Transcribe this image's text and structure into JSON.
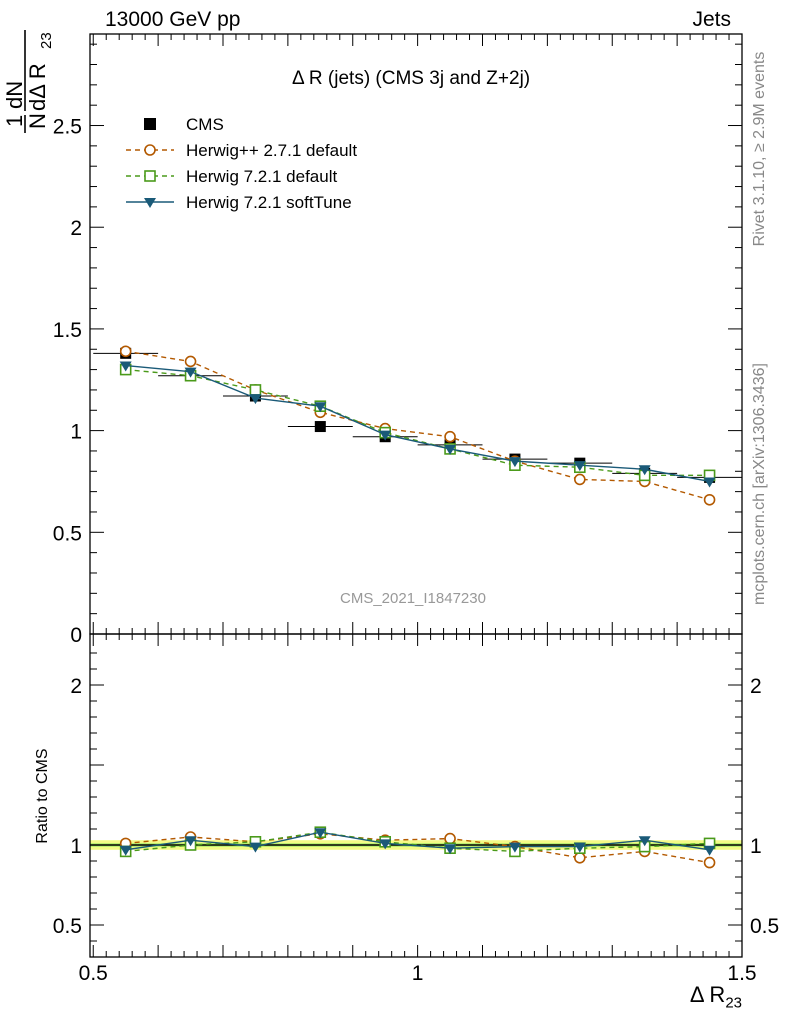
{
  "header": {
    "energy_label": "13000 GeV pp",
    "process_label": "Jets"
  },
  "side_labels": {
    "rivet": "Rivet 3.1.10, ≥ 2.9M events",
    "mcplots": "mcplots.cern.ch [arXiv:1306.3436]"
  },
  "analysis_tag": "CMS_2021_I1847230",
  "chart_data": [
    {
      "type": "line",
      "panel": "main",
      "title": "Δ R (jets) (CMS 3j and Z+2j)",
      "ylabel": "1/N dN/dΔ R23",
      "xlabel": "Δ R23",
      "xlim": [
        0.495,
        1.5
      ],
      "ylim": [
        0,
        2.95
      ],
      "x_ticks": [
        "0.5",
        "1",
        "1.5"
      ],
      "y_ticks": [
        "0",
        "0.5",
        "1",
        "1.5",
        "2",
        "2.5"
      ],
      "legend_position": "top-left",
      "x": [
        0.55,
        0.65,
        0.75,
        0.85,
        0.95,
        1.05,
        1.15,
        1.25,
        1.35,
        1.45
      ],
      "series": [
        {
          "name": "CMS",
          "style": "data",
          "color": "#000000",
          "values": [
            1.38,
            1.27,
            1.17,
            1.02,
            0.97,
            0.93,
            0.86,
            0.84,
            0.79,
            0.77
          ]
        },
        {
          "name": "Herwig++ 2.7.1 default",
          "style": "dashed-circle",
          "color": "#b35900",
          "values": [
            1.39,
            1.34,
            1.2,
            1.09,
            1.01,
            0.97,
            0.85,
            0.76,
            0.75,
            0.66
          ]
        },
        {
          "name": "Herwig 7.2.1 default",
          "style": "dashed-square",
          "color": "#4a9a1a",
          "values": [
            1.3,
            1.27,
            1.2,
            1.12,
            0.99,
            0.91,
            0.83,
            0.82,
            0.78,
            0.78
          ]
        },
        {
          "name": "Herwig 7.2.1 softTune",
          "style": "solid-triangle",
          "color": "#1a5a78",
          "values": [
            1.32,
            1.29,
            1.16,
            1.12,
            0.98,
            0.91,
            0.85,
            0.83,
            0.81,
            0.75
          ]
        }
      ]
    },
    {
      "type": "line",
      "panel": "ratio",
      "ylabel": "Ratio to CMS",
      "xlim": [
        0.495,
        1.5
      ],
      "ylim": [
        0.3,
        2.3
      ],
      "y_ticks": [
        "0.5",
        "1",
        "2"
      ],
      "x": [
        0.55,
        0.65,
        0.75,
        0.85,
        0.95,
        1.05,
        1.15,
        1.25,
        1.35,
        1.45
      ],
      "series": [
        {
          "name": "Herwig++ 2.7.1 default",
          "color": "#b35900",
          "values": [
            1.01,
            1.05,
            1.02,
            1.07,
            1.03,
            1.04,
            0.99,
            0.92,
            0.96,
            0.89
          ]
        },
        {
          "name": "Herwig 7.2.1 default",
          "color": "#4a9a1a",
          "values": [
            0.96,
            1.0,
            1.02,
            1.08,
            1.02,
            0.98,
            0.96,
            0.98,
            0.99,
            1.01
          ]
        },
        {
          "name": "Herwig 7.2.1 softTune",
          "color": "#1a5a78",
          "values": [
            0.97,
            1.03,
            0.99,
            1.08,
            1.01,
            0.98,
            0.99,
            0.99,
            1.03,
            0.97
          ]
        }
      ]
    }
  ]
}
